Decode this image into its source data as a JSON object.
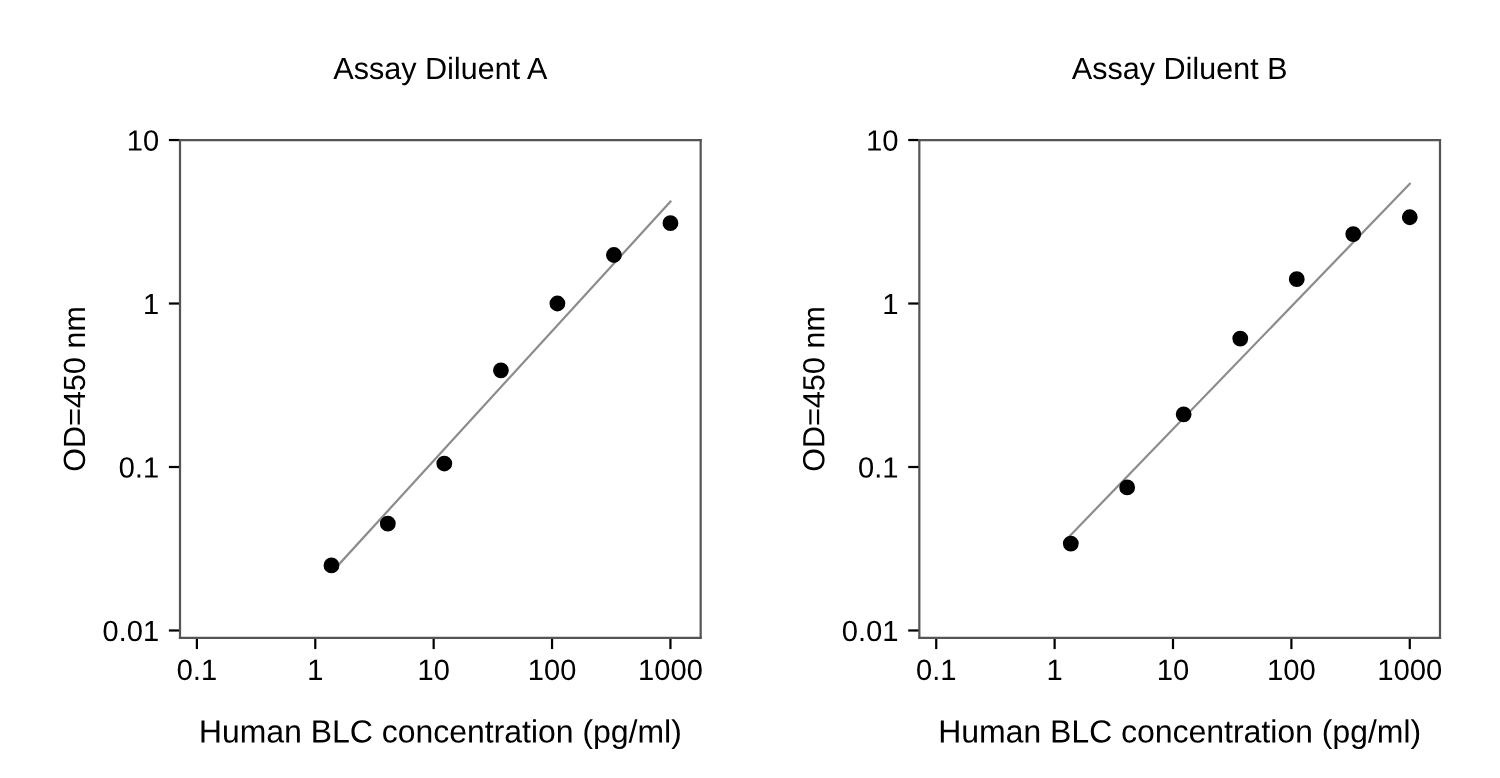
{
  "chart_data": [
    {
      "type": "scatter",
      "title": "Assay Diluent A",
      "xlabel": "Human BLC concentration (pg/ml)",
      "ylabel": "OD=450 nm",
      "log": "xy",
      "xlim": [
        0.072,
        1800
      ],
      "ylim": [
        0.009,
        10
      ],
      "xticks": [
        0.1,
        1,
        10,
        100,
        1000
      ],
      "yticks": [
        0.01,
        0.1,
        1,
        10
      ],
      "grid": false,
      "legend": false,
      "series": [
        {
          "marker": "circle",
          "color": "#000000",
          "x": [
            1.37,
            4.1,
            12.3,
            37,
            111,
            333,
            1000
          ],
          "values": [
            0.025,
            0.045,
            0.105,
            0.39,
            1.0,
            1.98,
            3.1
          ]
        },
        {
          "type": "line",
          "color": "#8c8c8c",
          "x": [
            1.4,
            1000
          ],
          "values": [
            0.023,
            4.2
          ]
        }
      ]
    },
    {
      "type": "scatter",
      "title": "Assay Diluent B",
      "xlabel": "Human BLC concentration (pg/ml)",
      "ylabel": "OD=450 nm",
      "log": "xy",
      "xlim": [
        0.072,
        1800
      ],
      "ylim": [
        0.009,
        10
      ],
      "xticks": [
        0.1,
        1,
        10,
        100,
        1000
      ],
      "yticks": [
        0.01,
        0.1,
        1,
        10
      ],
      "grid": false,
      "legend": false,
      "series": [
        {
          "marker": "circle",
          "color": "#000000",
          "x": [
            1.37,
            4.1,
            12.3,
            37,
            111,
            333,
            1000
          ],
          "values": [
            0.034,
            0.075,
            0.21,
            0.61,
            1.41,
            2.66,
            3.37
          ]
        },
        {
          "type": "line",
          "color": "#8c8c8c",
          "x": [
            1.35,
            1000
          ],
          "values": [
            0.038,
            5.4
          ]
        }
      ]
    }
  ]
}
